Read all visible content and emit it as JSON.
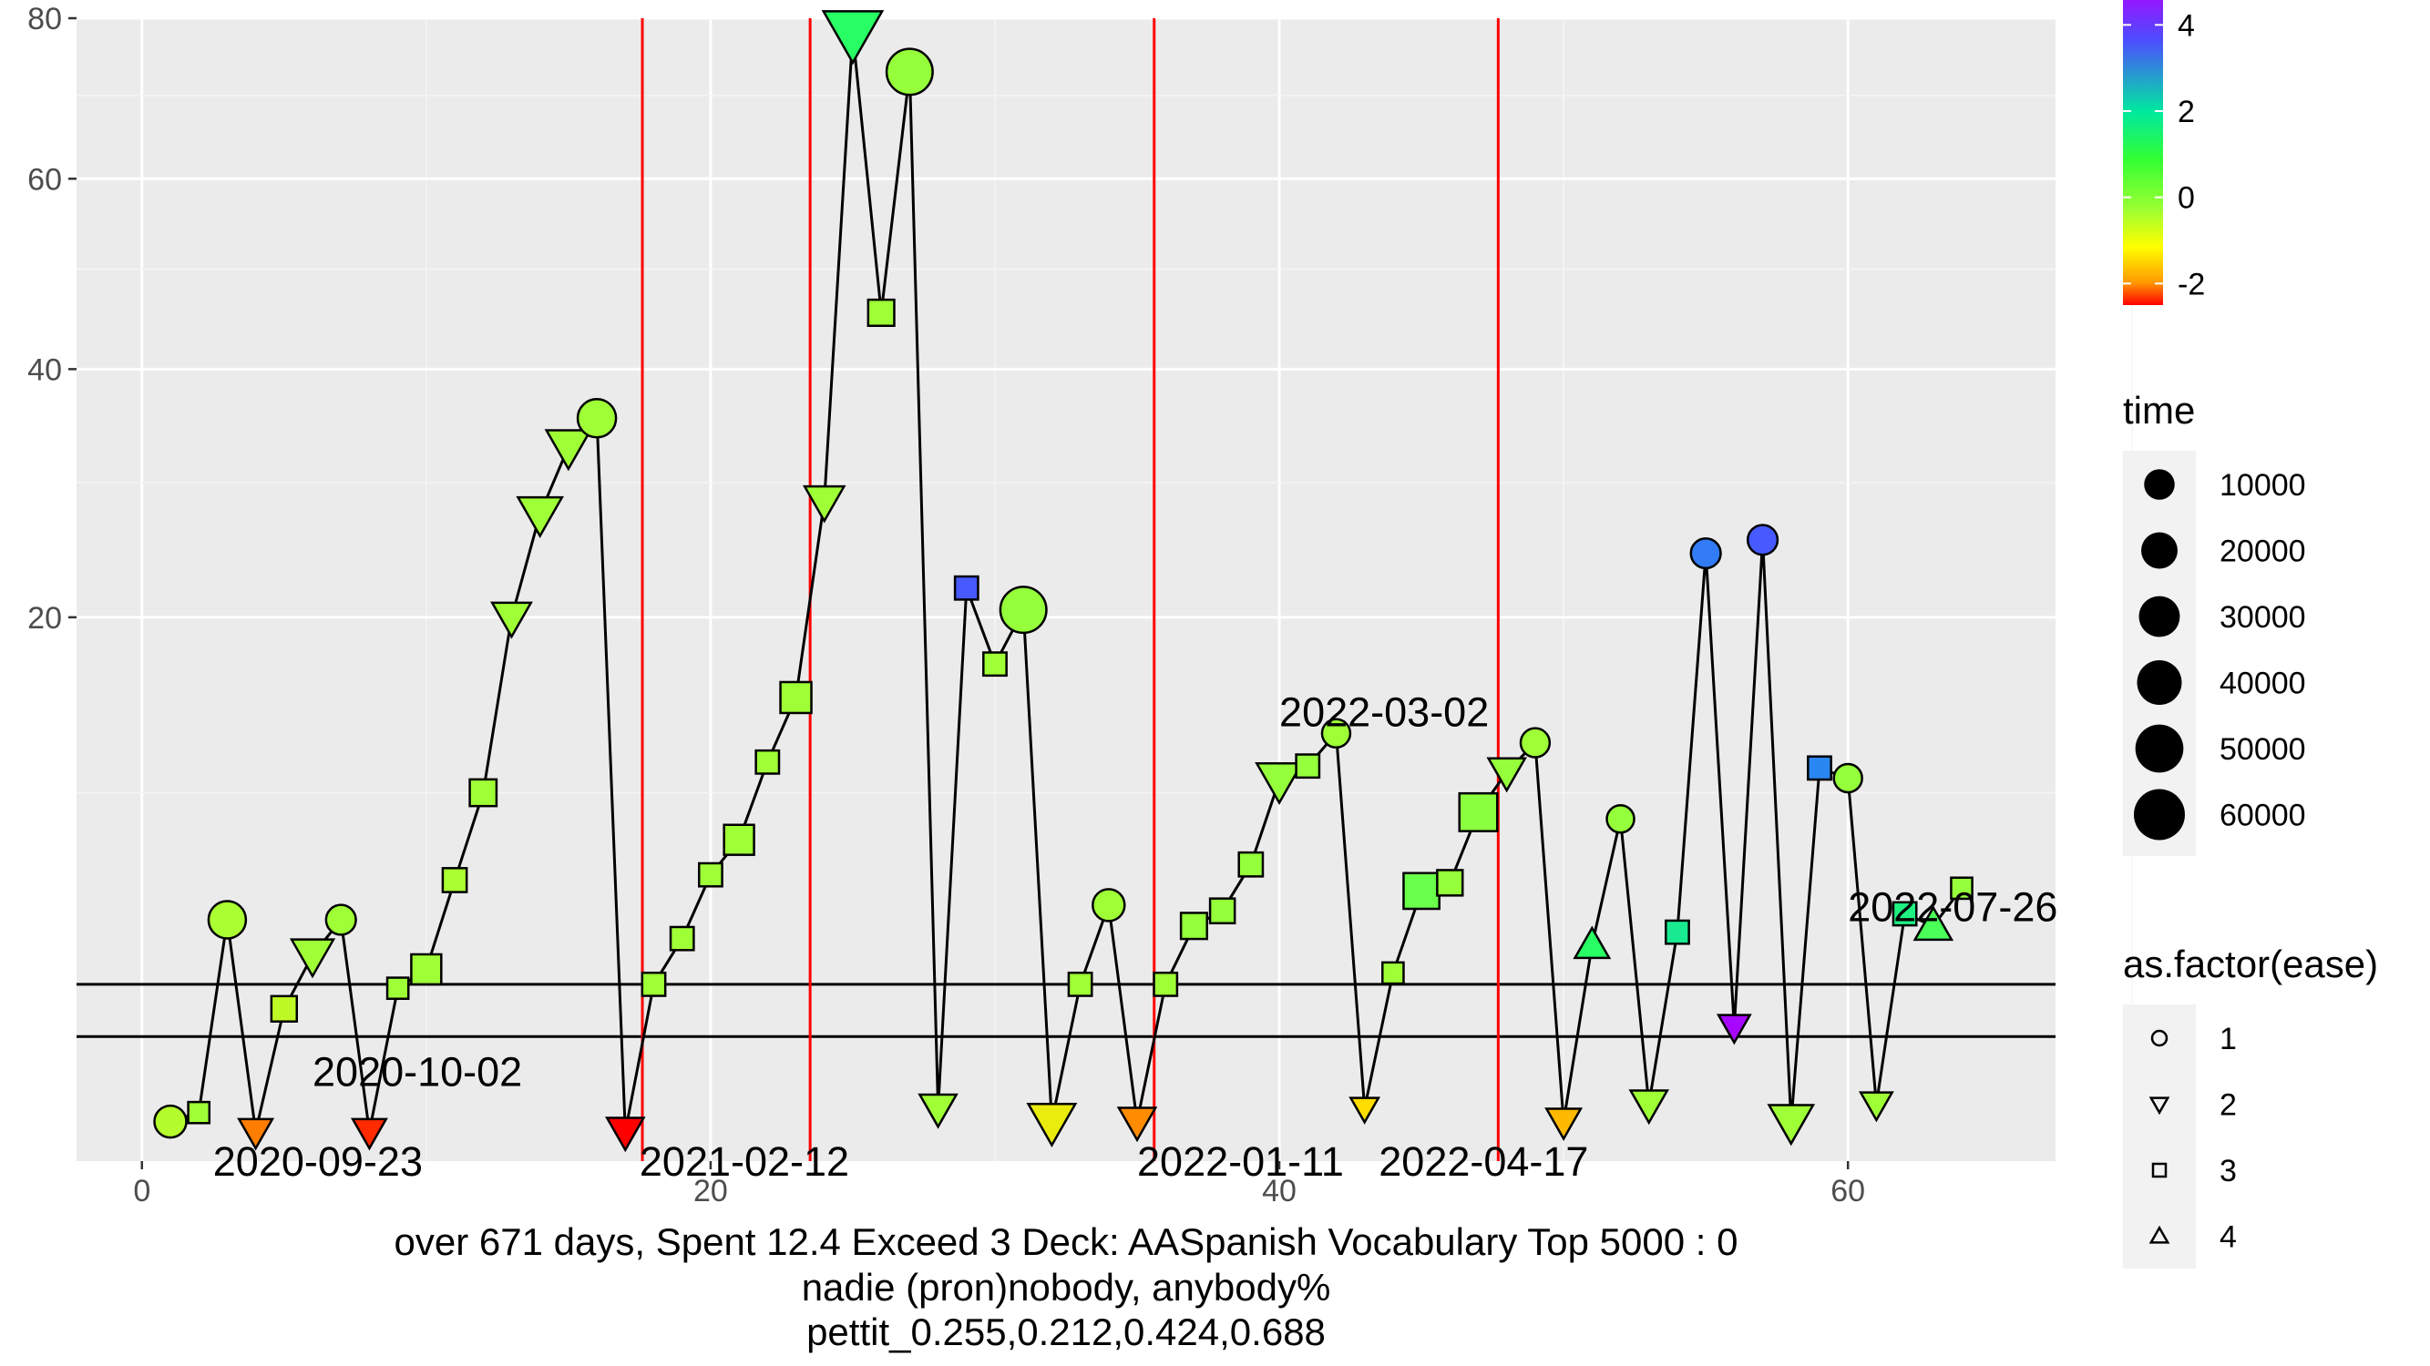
{
  "chart_data": {
    "type": "scatter",
    "x_range": [
      -2.3,
      67.3
    ],
    "x_ticks": [
      0,
      20,
      40,
      60
    ],
    "y_ticks": [
      20,
      40,
      60,
      80
    ],
    "y_scale": "sqrt",
    "grid": true,
    "legend_position": "right",
    "hlines": [
      3,
      1.8
    ],
    "vlines": [
      17.6,
      23.5,
      35.6,
      47.7
    ],
    "caption": [
      "over 671 days, Spent 12.4 Exceed 3 Deck: AASpanish Vocabulary Top 5000 : 0",
      "nadie (pron)nobody, anybody%",
      "pettit_0.255,0.212,0.424,0.688"
    ],
    "annotations": [
      {
        "x": 2.5,
        "y": 0.17,
        "text": "2020-09-23"
      },
      {
        "x": 6.0,
        "y": 1.17,
        "text": "2020-10-02"
      },
      {
        "x": 17.5,
        "y": 0.17,
        "text": "2021-02-12"
      },
      {
        "x": 35.0,
        "y": 0.17,
        "text": "2022-01-11"
      },
      {
        "x": 43.5,
        "y": 0.17,
        "text": "2022-04-17"
      },
      {
        "x": 40.0,
        "y": 14.2,
        "text": "2022-03-02"
      },
      {
        "x": 60.0,
        "y": 5.35,
        "text": "2022-07-26"
      }
    ],
    "points": [
      {
        "x": 1,
        "y": 0.5,
        "ease": 1,
        "time": 12000,
        "color": 0.2
      },
      {
        "x": 2,
        "y": 0.6,
        "ease": 3,
        "time": 3000,
        "color": 0.4
      },
      {
        "x": 3,
        "y": 4.9,
        "ease": 1,
        "time": 22000,
        "color": 0.3
      },
      {
        "x": 4,
        "y": 0.4,
        "ease": 2,
        "time": 8000,
        "color": -1.6
      },
      {
        "x": 5,
        "y": 2.4,
        "ease": 3,
        "time": 8000,
        "color": 0.1
      },
      {
        "x": 6,
        "y": 3.8,
        "ease": 2,
        "time": 20000,
        "color": 0.4
      },
      {
        "x": 7,
        "y": 4.9,
        "ease": 1,
        "time": 9000,
        "color": 0.4
      },
      {
        "x": 8,
        "y": 0.4,
        "ease": 2,
        "time": 8000,
        "color": -2.2
      },
      {
        "x": 9,
        "y": 2.9,
        "ease": 3,
        "time": 3000,
        "color": 0.4
      },
      {
        "x": 10,
        "y": 3.4,
        "ease": 3,
        "time": 16000,
        "color": 0.4
      },
      {
        "x": 11,
        "y": 6.3,
        "ease": 3,
        "time": 6000,
        "color": 0.3
      },
      {
        "x": 12,
        "y": 10.0,
        "ease": 3,
        "time": 10000,
        "color": 0.4
      },
      {
        "x": 13,
        "y": 20.0,
        "ease": 2,
        "time": 15000,
        "color": 0.4
      },
      {
        "x": 14,
        "y": 27.5,
        "ease": 2,
        "time": 24000,
        "color": 0.4
      },
      {
        "x": 15,
        "y": 33.0,
        "ease": 2,
        "time": 24000,
        "color": 0.4
      },
      {
        "x": 16,
        "y": 35.5,
        "ease": 1,
        "time": 24000,
        "color": 0.4
      },
      {
        "x": 17,
        "y": 0.4,
        "ease": 2,
        "time": 12000,
        "color": -2.6
      },
      {
        "x": 18,
        "y": 3.0,
        "ease": 3,
        "time": 5000,
        "color": 0.4
      },
      {
        "x": 19,
        "y": 4.3,
        "ease": 3,
        "time": 5000,
        "color": 0.4
      },
      {
        "x": 20,
        "y": 6.5,
        "ease": 3,
        "time": 5000,
        "color": 0.4
      },
      {
        "x": 21,
        "y": 7.9,
        "ease": 3,
        "time": 16000,
        "color": 0.4
      },
      {
        "x": 22,
        "y": 11.5,
        "ease": 3,
        "time": 5000,
        "color": 0.4
      },
      {
        "x": 23,
        "y": 15.0,
        "ease": 3,
        "time": 18000,
        "color": 0.4
      },
      {
        "x": 24,
        "y": 28.5,
        "ease": 2,
        "time": 16000,
        "color": 0.4
      },
      {
        "x": 25,
        "y": 78.0,
        "ease": 2,
        "time": 60000,
        "color": 1.5
      },
      {
        "x": 26,
        "y": 45.5,
        "ease": 3,
        "time": 9000,
        "color": 0.4
      },
      {
        "x": 27,
        "y": 73.0,
        "ease": 1,
        "time": 44000,
        "color": 0.5
      },
      {
        "x": 28,
        "y": 0.65,
        "ease": 2,
        "time": 12000,
        "color": 0.4
      },
      {
        "x": 29,
        "y": 22.0,
        "ease": 3,
        "time": 5000,
        "color": 3.3
      },
      {
        "x": 30,
        "y": 17.0,
        "ease": 3,
        "time": 5000,
        "color": 0.4
      },
      {
        "x": 31,
        "y": 20.5,
        "ease": 1,
        "time": 44000,
        "color": 0.5
      },
      {
        "x": 32,
        "y": 0.5,
        "ease": 2,
        "time": 30000,
        "color": -0.3
      },
      {
        "x": 33,
        "y": 3.0,
        "ease": 3,
        "time": 5000,
        "color": 0.4
      },
      {
        "x": 34,
        "y": 5.4,
        "ease": 1,
        "time": 12000,
        "color": 0.4
      },
      {
        "x": 35,
        "y": 0.5,
        "ease": 2,
        "time": 12000,
        "color": -1.5
      },
      {
        "x": 36,
        "y": 3.0,
        "ease": 3,
        "time": 5000,
        "color": 0.4
      },
      {
        "x": 37,
        "y": 4.7,
        "ease": 3,
        "time": 9000,
        "color": 0.5
      },
      {
        "x": 38,
        "y": 5.2,
        "ease": 3,
        "time": 7000,
        "color": 0.5
      },
      {
        "x": 39,
        "y": 6.9,
        "ease": 3,
        "time": 6000,
        "color": 0.5
      },
      {
        "x": 40,
        "y": 10.6,
        "ease": 2,
        "time": 26000,
        "color": 0.5
      },
      {
        "x": 41,
        "y": 11.3,
        "ease": 3,
        "time": 5000,
        "color": 0.5
      },
      {
        "x": 42,
        "y": 13.0,
        "ease": 1,
        "time": 7000,
        "color": 0.4
      },
      {
        "x": 43,
        "y": 0.65,
        "ease": 2,
        "time": 3000,
        "color": -0.6
      },
      {
        "x": 44,
        "y": 3.3,
        "ease": 3,
        "time": 3000,
        "color": 0.4
      },
      {
        "x": 45,
        "y": 5.9,
        "ease": 3,
        "time": 30000,
        "color": 0.9
      },
      {
        "x": 46,
        "y": 6.2,
        "ease": 3,
        "time": 8000,
        "color": 0.5
      },
      {
        "x": 47,
        "y": 9.1,
        "ease": 3,
        "time": 36000,
        "color": 0.6
      },
      {
        "x": 48,
        "y": 11.0,
        "ease": 2,
        "time": 12000,
        "color": 0.5
      },
      {
        "x": 49,
        "y": 12.5,
        "ease": 1,
        "time": 8000,
        "color": 0.4
      },
      {
        "x": 50,
        "y": 0.5,
        "ease": 2,
        "time": 9000,
        "color": -1.0
      },
      {
        "x": 51,
        "y": 4.1,
        "ease": 4,
        "time": 9000,
        "color": 1.5
      },
      {
        "x": 52,
        "y": 8.8,
        "ease": 1,
        "time": 6000,
        "color": 0.5
      },
      {
        "x": 53,
        "y": 0.7,
        "ease": 2,
        "time": 12000,
        "color": 0.4
      },
      {
        "x": 54,
        "y": 4.5,
        "ease": 3,
        "time": 5000,
        "color": 1.8
      },
      {
        "x": 55,
        "y": 24.5,
        "ease": 1,
        "time": 9000,
        "color": 3.0
      },
      {
        "x": 56,
        "y": 2.0,
        "ease": 2,
        "time": 6000,
        "color": 4.5
      },
      {
        "x": 57,
        "y": 25.5,
        "ease": 1,
        "time": 9000,
        "color": 3.3
      },
      {
        "x": 58,
        "y": 0.5,
        "ease": 2,
        "time": 24000,
        "color": 0.4
      },
      {
        "x": 59,
        "y": 11.2,
        "ease": 3,
        "time": 5000,
        "color": 2.9
      },
      {
        "x": 60,
        "y": 10.7,
        "ease": 1,
        "time": 7000,
        "color": 0.5
      },
      {
        "x": 61,
        "y": 0.7,
        "ease": 2,
        "time": 6000,
        "color": 0.4
      },
      {
        "x": 62,
        "y": 5.1,
        "ease": 3,
        "time": 5000,
        "color": 1.7
      },
      {
        "x": 63,
        "y": 4.7,
        "ease": 4,
        "time": 12000,
        "color": 1.2
      },
      {
        "x": 64,
        "y": 6.0,
        "ease": 3,
        "time": 3000,
        "color": 0.5
      }
    ],
    "color_legend": {
      "title": "",
      "breaks": [
        4,
        2,
        0,
        -2
      ],
      "labels": [
        "4",
        "2",
        "0",
        "-2"
      ],
      "range": [
        -2.5,
        5
      ]
    },
    "size_legend": {
      "title": "time",
      "breaks": [
        10000,
        20000,
        30000,
        40000,
        50000,
        60000
      ],
      "labels": [
        "10000",
        "20000",
        "30000",
        "40000",
        "50000",
        "60000"
      ]
    },
    "shape_legend": {
      "title": "as.factor(ease)",
      "items": [
        {
          "label": "1",
          "shape": "circle"
        },
        {
          "label": "2",
          "shape": "triangle-down"
        },
        {
          "label": "3",
          "shape": "square"
        },
        {
          "label": "4",
          "shape": "triangle-up"
        }
      ]
    }
  }
}
